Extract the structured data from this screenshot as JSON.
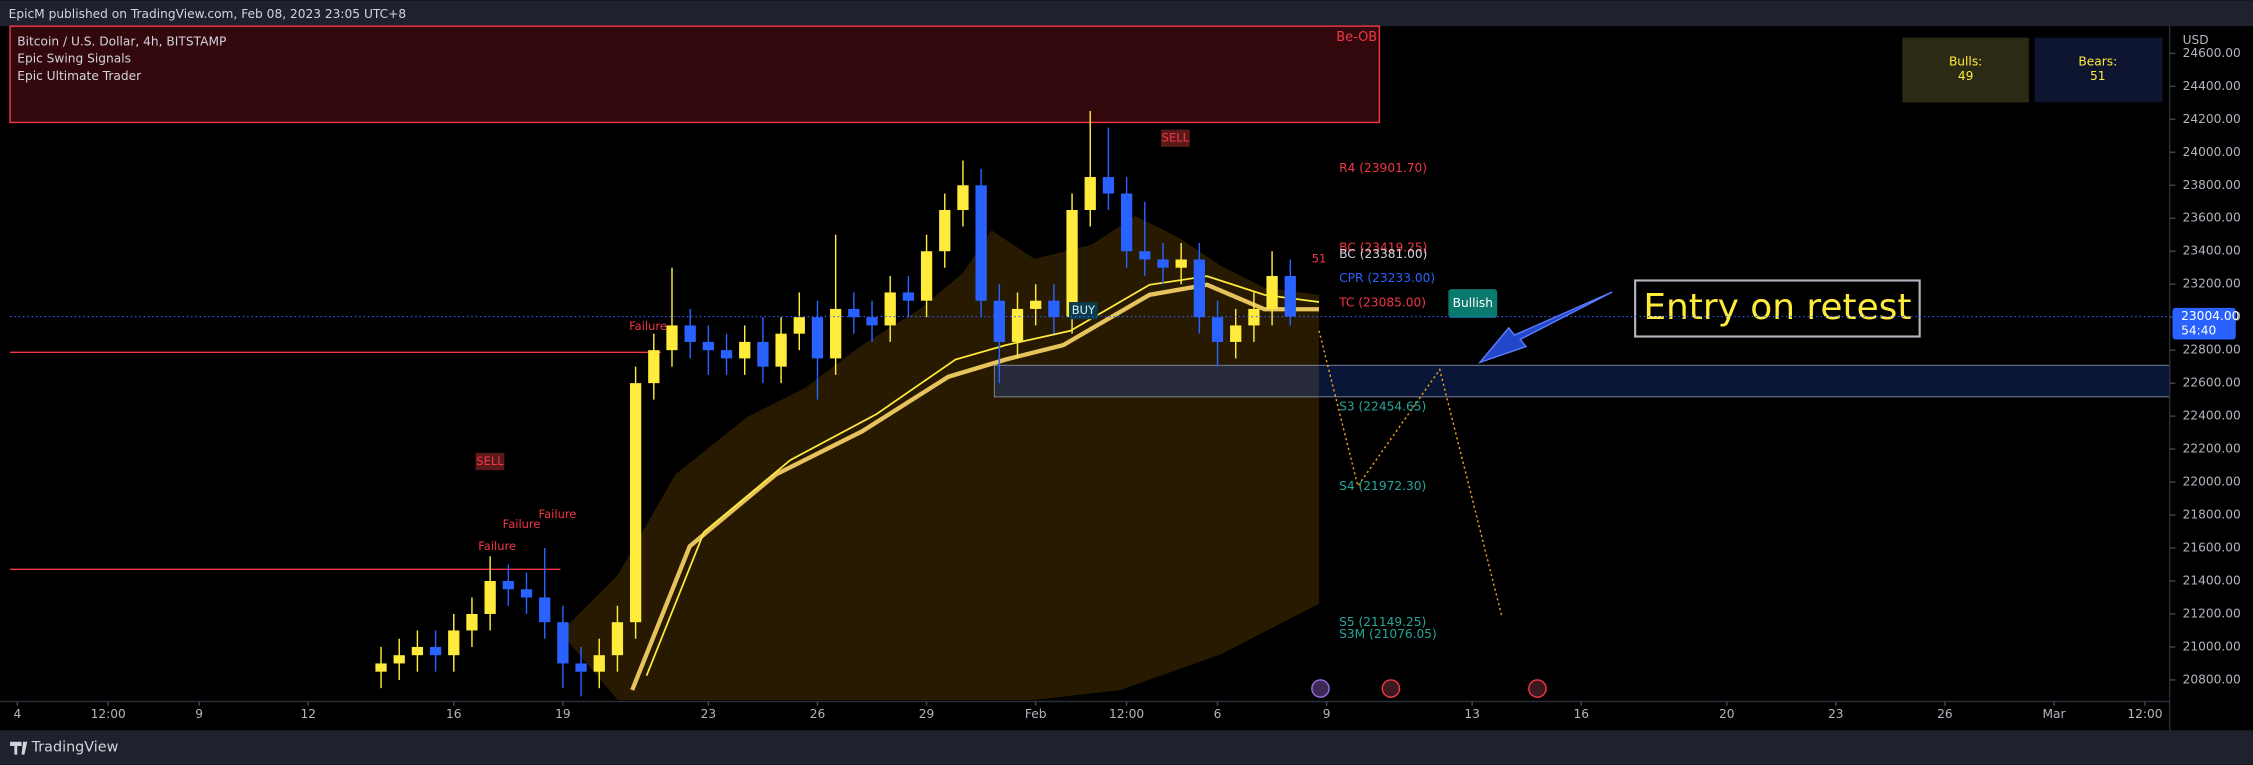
{
  "header": {
    "published": "EpicM published on TradingView.com, Feb 08, 2023 23:05 UTC+8",
    "brand": "TradingView"
  },
  "legend": {
    "symbol": "Bitcoin / U.S. Dollar, 4h, BITSTAMP",
    "indicators": [
      "Epic Swing Signals",
      "Epic Ultimate Trader"
    ]
  },
  "chart_data": {
    "type": "candlestick",
    "currency": "USD",
    "x": [
      14,
      14.5,
      15,
      15.5,
      16,
      16.5,
      17,
      17.5,
      18,
      18.5,
      19,
      19.5,
      20,
      20.5,
      21,
      21.5,
      22,
      22.5,
      23,
      23.5,
      24,
      24.5,
      25,
      25.5,
      26,
      26.5,
      27,
      27.5,
      28,
      28.5,
      29,
      29.5,
      30,
      30.5,
      31,
      31.5,
      32,
      32.5,
      33,
      33.5,
      34,
      34.5,
      35,
      35.5,
      36,
      36.5,
      37,
      37.5,
      38,
      38.5,
      39
    ],
    "open": [
      20850,
      20900,
      20950,
      21000,
      20950,
      21100,
      21200,
      21400,
      21350,
      21300,
      21150,
      20900,
      20850,
      20950,
      21150,
      22600,
      22800,
      22950,
      22850,
      22800,
      22750,
      22850,
      22700,
      22900,
      23000,
      22750,
      23050,
      23000,
      22950,
      23150,
      23100,
      23400,
      23650,
      23800,
      23100,
      22850,
      23050,
      23100,
      23000,
      23650,
      23850,
      23750,
      23400,
      23350,
      23300,
      23350,
      23000,
      22850,
      22950,
      23050,
      23250
    ],
    "high": [
      21000,
      21050,
      21100,
      21100,
      21200,
      21300,
      21550,
      21500,
      21450,
      21600,
      21250,
      21000,
      21050,
      21250,
      22700,
      22900,
      23300,
      23050,
      22950,
      22900,
      22950,
      23000,
      23000,
      23150,
      23100,
      23500,
      23150,
      23100,
      23250,
      23250,
      23500,
      23750,
      23950,
      23900,
      23200,
      23150,
      23200,
      23200,
      23750,
      24250,
      24150,
      23850,
      23700,
      23450,
      23450,
      23450,
      23100,
      23050,
      23150,
      23400,
      23350
    ],
    "low": [
      20750,
      20800,
      20850,
      20850,
      20850,
      21000,
      21100,
      21250,
      21200,
      21050,
      20750,
      20700,
      20750,
      20850,
      21050,
      22500,
      22700,
      22750,
      22650,
      22650,
      22650,
      22600,
      22600,
      22800,
      22500,
      22650,
      22900,
      22850,
      22850,
      23000,
      23000,
      23300,
      23550,
      23000,
      22600,
      22750,
      22950,
      22900,
      22900,
      23550,
      23650,
      23300,
      23250,
      23200,
      23200,
      22900,
      22700,
      22750,
      22850,
      22950,
      22950
    ],
    "close": [
      20900,
      20950,
      21000,
      20950,
      21100,
      21200,
      21400,
      21350,
      21300,
      21150,
      20900,
      20850,
      20950,
      21150,
      22600,
      22800,
      22950,
      22850,
      22800,
      22750,
      22850,
      22700,
      22900,
      23000,
      22750,
      23050,
      23000,
      22950,
      23150,
      23100,
      23400,
      23650,
      23800,
      23100,
      22850,
      23050,
      23100,
      23000,
      23650,
      23850,
      23750,
      23400,
      23350,
      23300,
      23350,
      23000,
      22850,
      22950,
      23050,
      23250,
      23004
    ],
    "up_color": "#ffeb3b",
    "down_color": "#2962ff",
    "xlim": [
      3.8,
      63.1
    ],
    "xticks": [
      4,
      {
        "value": 6.5,
        "label": "12:00"
      },
      9,
      12,
      16,
      19,
      23,
      26,
      29,
      {
        "value": 32,
        "label": "Feb"
      },
      {
        "value": 34.5,
        "label": "12:00"
      },
      {
        "value": 37,
        "label": "6"
      },
      {
        "value": 40,
        "label": "9"
      },
      {
        "value": 44,
        "label": "13"
      },
      {
        "value": 47,
        "label": "16"
      },
      {
        "value": 51,
        "label": "20"
      },
      {
        "value": 54,
        "label": "23"
      },
      {
        "value": 57,
        "label": "26"
      },
      {
        "value": 60,
        "label": "Mar"
      },
      {
        "value": 62.5,
        "label": "12:00"
      }
    ],
    "ylim": [
      20678,
      24765
    ],
    "yticks": [
      {
        "value": 20800,
        "label": "20800.00"
      },
      {
        "value": 21000,
        "label": "21000.00"
      },
      {
        "value": 21200,
        "label": "21200.00"
      },
      {
        "value": 21400,
        "label": "21400.00"
      },
      {
        "value": 21600,
        "label": "21600.00"
      },
      {
        "value": 21800,
        "label": "21800.00"
      },
      {
        "value": 22000,
        "label": "22000.00"
      },
      {
        "value": 22200,
        "label": "22200.00"
      },
      {
        "value": 22400,
        "label": "22400.00"
      },
      {
        "value": 22600,
        "label": "22600.00"
      },
      {
        "value": 22800,
        "label": "22800.00"
      },
      {
        "value": 23000,
        "label": "23000.00"
      },
      {
        "value": 23200,
        "label": "23200.00"
      },
      {
        "value": 23400,
        "label": "23400.00"
      },
      {
        "value": 23600,
        "label": "23600.00"
      },
      {
        "value": 23800,
        "label": "23800.00"
      },
      {
        "value": 24000,
        "label": "24000.00"
      },
      {
        "value": 24200,
        "label": "24200.00"
      },
      {
        "value": 24400,
        "label": "24400.00"
      },
      {
        "value": 24600,
        "label": "24600.00"
      }
    ],
    "last_price": {
      "value": 23004,
      "label": "23004.00"
    },
    "countdown": "54:40",
    "levels": [
      {
        "label": "R4 (23901.70)",
        "value": 23901.7,
        "color": "#f23645"
      },
      {
        "label": "BC (23419.25)",
        "value": 23419.25,
        "color": "#f23645"
      },
      {
        "label": "BC (23381.00)",
        "value": 23381,
        "color": "#d1d4dc"
      },
      {
        "label": "CPR (23233.00)",
        "value": 23233,
        "color": "#2962ff"
      },
      {
        "label": "TC (23085.00)",
        "value": 23085,
        "color": "#f23645"
      },
      {
        "label": "S3 (22454.65)",
        "value": 22454.65,
        "color": "#26a69a"
      },
      {
        "label": "S4 (21972.30)",
        "value": 21972.3,
        "color": "#26a69a"
      },
      {
        "label": "S5 (21149.25)",
        "value": 21149.25,
        "color": "#26a69a"
      },
      {
        "label": "S3M (21076.05)",
        "value": 21076.05,
        "color": "#26a69a"
      }
    ],
    "annotations": {
      "order_block": "Be-OB",
      "sell": [
        "SELL",
        "SELL"
      ],
      "buy": "BUY",
      "failure": [
        "Failure",
        "Failure",
        "Failure",
        "Failure"
      ],
      "bullish": "Bullish",
      "callout": "Entry on retest",
      "count_label": "51"
    },
    "sentiment": {
      "bulls_label": "Bulls:",
      "bulls": 49,
      "bears_label": "Bears:",
      "bears": 51
    }
  }
}
